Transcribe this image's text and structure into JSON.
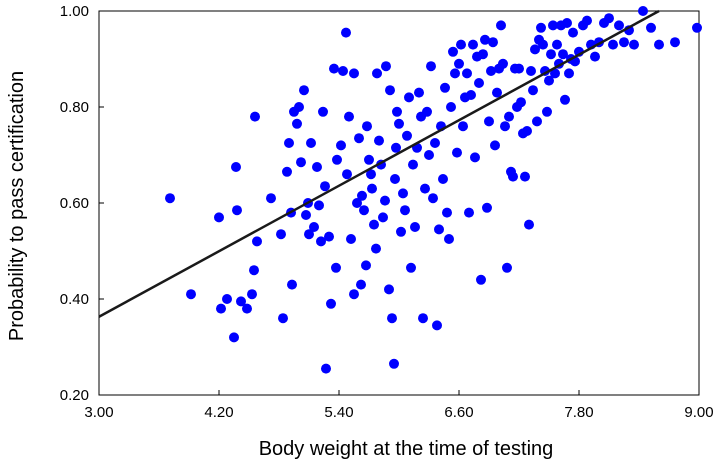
{
  "chart_data": {
    "type": "scatter",
    "title": "",
    "xlabel": "Body weight at the time of testing",
    "ylabel": "Probability to pass certification",
    "xlim": [
      3.0,
      9.0
    ],
    "ylim": [
      0.2,
      1.0
    ],
    "x_ticks": [
      3.0,
      4.2,
      5.4,
      6.6,
      7.8,
      9.0
    ],
    "x_tick_labels": [
      "3.00",
      "4.20",
      "5.40",
      "6.60",
      "7.80",
      "9.00"
    ],
    "y_ticks": [
      0.2,
      0.4,
      0.6,
      0.8,
      1.0
    ],
    "y_tick_labels": [
      "0.20",
      "0.40",
      "0.60",
      "0.80",
      "1.00"
    ],
    "grid": false,
    "legend": "none",
    "point_color": "#0000ff",
    "line_color": "#1a1a1a",
    "trend_line": [
      [
        3.0,
        0.363
      ],
      [
        8.6,
        1.0
      ]
    ],
    "points": [
      [
        3.71,
        0.61
      ],
      [
        3.92,
        0.41
      ],
      [
        4.2,
        0.57
      ],
      [
        4.22,
        0.38
      ],
      [
        4.28,
        0.4
      ],
      [
        4.35,
        0.32
      ],
      [
        4.37,
        0.675
      ],
      [
        4.38,
        0.585
      ],
      [
        4.42,
        0.395
      ],
      [
        4.48,
        0.38
      ],
      [
        4.53,
        0.41
      ],
      [
        4.55,
        0.46
      ],
      [
        4.58,
        0.52
      ],
      [
        4.56,
        0.78
      ],
      [
        4.72,
        0.61
      ],
      [
        4.82,
        0.535
      ],
      [
        4.84,
        0.36
      ],
      [
        4.88,
        0.665
      ],
      [
        4.9,
        0.725
      ],
      [
        4.92,
        0.58
      ],
      [
        4.93,
        0.43
      ],
      [
        4.95,
        0.79
      ],
      [
        4.98,
        0.765
      ],
      [
        5.0,
        0.8
      ],
      [
        5.02,
        0.685
      ],
      [
        5.05,
        0.835
      ],
      [
        5.07,
        0.575
      ],
      [
        5.09,
        0.6
      ],
      [
        5.1,
        0.535
      ],
      [
        5.12,
        0.725
      ],
      [
        5.15,
        0.55
      ],
      [
        5.18,
        0.675
      ],
      [
        5.2,
        0.595
      ],
      [
        5.22,
        0.52
      ],
      [
        5.24,
        0.79
      ],
      [
        5.26,
        0.635
      ],
      [
        5.27,
        0.255
      ],
      [
        5.3,
        0.53
      ],
      [
        5.32,
        0.39
      ],
      [
        5.35,
        0.88
      ],
      [
        5.37,
        0.465
      ],
      [
        5.38,
        0.69
      ],
      [
        5.42,
        0.72
      ],
      [
        5.44,
        0.875
      ],
      [
        5.47,
        0.955
      ],
      [
        5.48,
        0.66
      ],
      [
        5.5,
        0.78
      ],
      [
        5.52,
        0.525
      ],
      [
        5.55,
        0.41
      ],
      [
        5.55,
        0.87
      ],
      [
        5.58,
        0.6
      ],
      [
        5.6,
        0.735
      ],
      [
        5.62,
        0.43
      ],
      [
        5.63,
        0.615
      ],
      [
        5.65,
        0.585
      ],
      [
        5.67,
        0.47
      ],
      [
        5.68,
        0.76
      ],
      [
        5.7,
        0.69
      ],
      [
        5.72,
        0.66
      ],
      [
        5.73,
        0.63
      ],
      [
        5.75,
        0.555
      ],
      [
        5.77,
        0.505
      ],
      [
        5.78,
        0.87
      ],
      [
        5.8,
        0.73
      ],
      [
        5.82,
        0.68
      ],
      [
        5.84,
        0.57
      ],
      [
        5.86,
        0.605
      ],
      [
        5.87,
        0.885
      ],
      [
        5.9,
        0.42
      ],
      [
        5.91,
        0.835
      ],
      [
        5.93,
        0.36
      ],
      [
        5.95,
        0.265
      ],
      [
        5.96,
        0.65
      ],
      [
        5.97,
        0.715
      ],
      [
        5.98,
        0.79
      ],
      [
        6.0,
        0.765
      ],
      [
        6.02,
        0.54
      ],
      [
        6.04,
        0.62
      ],
      [
        6.06,
        0.585
      ],
      [
        6.08,
        0.74
      ],
      [
        6.1,
        0.82
      ],
      [
        6.12,
        0.465
      ],
      [
        6.14,
        0.68
      ],
      [
        6.16,
        0.55
      ],
      [
        6.18,
        0.715
      ],
      [
        6.2,
        0.83
      ],
      [
        6.22,
        0.78
      ],
      [
        6.24,
        0.36
      ],
      [
        6.26,
        0.63
      ],
      [
        6.28,
        0.79
      ],
      [
        6.3,
        0.7
      ],
      [
        6.32,
        0.885
      ],
      [
        6.34,
        0.61
      ],
      [
        6.36,
        0.725
      ],
      [
        6.38,
        0.345
      ],
      [
        6.4,
        0.545
      ],
      [
        6.42,
        0.76
      ],
      [
        6.44,
        0.65
      ],
      [
        6.46,
        0.84
      ],
      [
        6.48,
        0.58
      ],
      [
        6.5,
        0.525
      ],
      [
        6.52,
        0.8
      ],
      [
        6.54,
        0.915
      ],
      [
        6.56,
        0.87
      ],
      [
        6.58,
        0.705
      ],
      [
        6.6,
        0.89
      ],
      [
        6.62,
        0.93
      ],
      [
        6.64,
        0.76
      ],
      [
        6.66,
        0.82
      ],
      [
        6.68,
        0.87
      ],
      [
        6.7,
        0.58
      ],
      [
        6.72,
        0.825
      ],
      [
        6.74,
        0.93
      ],
      [
        6.76,
        0.695
      ],
      [
        6.78,
        0.905
      ],
      [
        6.8,
        0.85
      ],
      [
        6.82,
        0.44
      ],
      [
        6.84,
        0.91
      ],
      [
        6.86,
        0.94
      ],
      [
        6.88,
        0.59
      ],
      [
        6.9,
        0.77
      ],
      [
        6.92,
        0.875
      ],
      [
        6.94,
        0.935
      ],
      [
        6.96,
        0.72
      ],
      [
        6.98,
        0.83
      ],
      [
        7.0,
        0.88
      ],
      [
        7.02,
        0.97
      ],
      [
        7.04,
        0.89
      ],
      [
        7.06,
        0.76
      ],
      [
        7.08,
        0.465
      ],
      [
        7.1,
        0.78
      ],
      [
        7.12,
        0.665
      ],
      [
        7.14,
        0.655
      ],
      [
        7.16,
        0.88
      ],
      [
        7.18,
        0.8
      ],
      [
        7.2,
        0.88
      ],
      [
        7.22,
        0.81
      ],
      [
        7.24,
        0.745
      ],
      [
        7.26,
        0.655
      ],
      [
        7.28,
        0.75
      ],
      [
        7.3,
        0.555
      ],
      [
        7.32,
        0.875
      ],
      [
        7.34,
        0.835
      ],
      [
        7.36,
        0.92
      ],
      [
        7.38,
        0.77
      ],
      [
        7.4,
        0.94
      ],
      [
        7.42,
        0.965
      ],
      [
        7.44,
        0.93
      ],
      [
        7.46,
        0.875
      ],
      [
        7.48,
        0.79
      ],
      [
        7.5,
        0.855
      ],
      [
        7.52,
        0.91
      ],
      [
        7.54,
        0.97
      ],
      [
        7.56,
        0.87
      ],
      [
        7.58,
        0.93
      ],
      [
        7.6,
        0.89
      ],
      [
        7.62,
        0.97
      ],
      [
        7.64,
        0.91
      ],
      [
        7.66,
        0.815
      ],
      [
        7.68,
        0.975
      ],
      [
        7.7,
        0.87
      ],
      [
        7.72,
        0.9
      ],
      [
        7.74,
        0.955
      ],
      [
        7.76,
        0.895
      ],
      [
        7.8,
        0.915
      ],
      [
        7.84,
        0.97
      ],
      [
        7.88,
        0.98
      ],
      [
        7.92,
        0.93
      ],
      [
        7.96,
        0.905
      ],
      [
        8.0,
        0.935
      ],
      [
        8.05,
        0.975
      ],
      [
        8.1,
        0.985
      ],
      [
        8.14,
        0.93
      ],
      [
        8.2,
        0.97
      ],
      [
        8.25,
        0.935
      ],
      [
        8.3,
        0.96
      ],
      [
        8.35,
        0.93
      ],
      [
        8.44,
        1.0
      ],
      [
        8.52,
        0.965
      ],
      [
        8.6,
        0.93
      ],
      [
        8.76,
        0.935
      ],
      [
        8.98,
        0.965
      ]
    ]
  }
}
